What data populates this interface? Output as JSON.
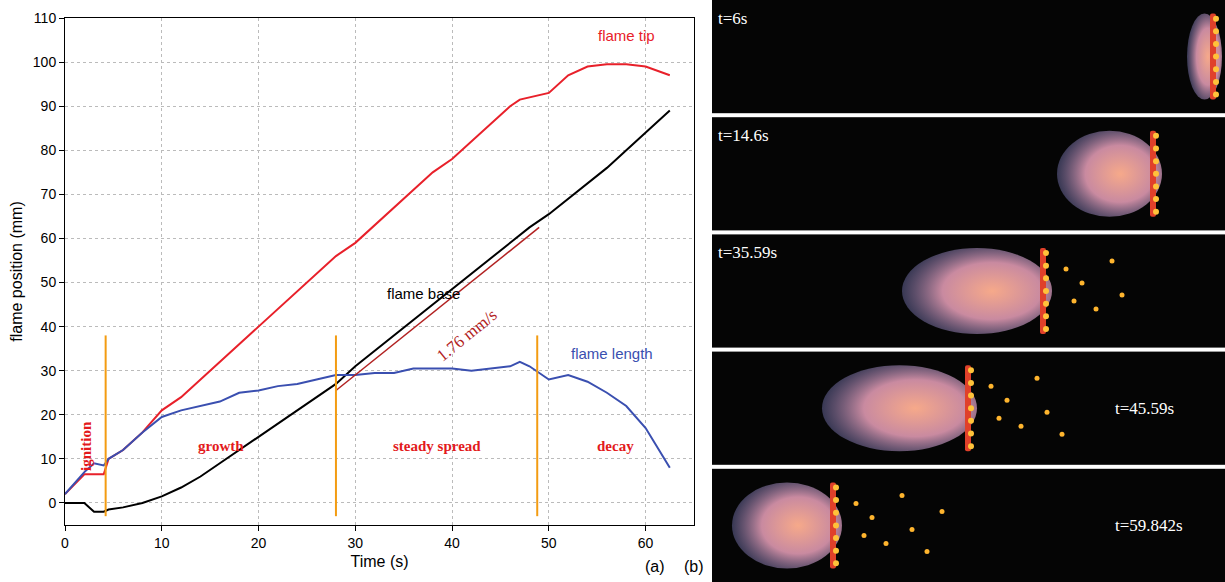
{
  "chart_data": {
    "type": "line",
    "xlabel": "Time (s)",
    "ylabel": "flame position (mm)",
    "xlim": [
      0,
      65
    ],
    "xticks": [
      0,
      10,
      20,
      30,
      40,
      50,
      60
    ],
    "ylim": [
      -5,
      110
    ],
    "yticks": [
      0,
      10,
      20,
      30,
      40,
      50,
      60,
      70,
      80,
      90,
      100,
      110
    ],
    "grid": true,
    "x": [
      0,
      2,
      3,
      4,
      4.5,
      6,
      8,
      10,
      12,
      14,
      16,
      18,
      20,
      22,
      24,
      26,
      28,
      30,
      32,
      34,
      36,
      38,
      40,
      42,
      44,
      46,
      47,
      48,
      50,
      52,
      54,
      56,
      58,
      60,
      62.5
    ],
    "series": [
      {
        "name": "flame tip",
        "color": "#e8202a",
        "label_at": [
          58,
          106
        ],
        "values": [
          2,
          6.5,
          6.5,
          6.5,
          10,
          12,
          16,
          21,
          24,
          28,
          32,
          36,
          40,
          44,
          48,
          52,
          56,
          59,
          63,
          67,
          71,
          75,
          78,
          82,
          86,
          90,
          91.5,
          92,
          93,
          97,
          99,
          99.5,
          99.5,
          99,
          97
        ]
      },
      {
        "name": "flame base",
        "color": "#000000",
        "label_at": [
          37,
          47.5
        ],
        "values": [
          0,
          0,
          -2,
          -2,
          -1.5,
          -1,
          0,
          1.5,
          3.5,
          6,
          9,
          12,
          15,
          18,
          21,
          24,
          27,
          31,
          34.5,
          38,
          41.5,
          45,
          48.5,
          52,
          55.5,
          59,
          60.8,
          62.5,
          65.5,
          69,
          72.5,
          76,
          80,
          84,
          89
        ]
      },
      {
        "name": "flame length",
        "color": "#3a4fb0",
        "label_at": [
          56.5,
          34
        ],
        "values": [
          2,
          7,
          9,
          8.5,
          10,
          12,
          16,
          19.5,
          21,
          22,
          23,
          25,
          25.5,
          26.5,
          27,
          28,
          29,
          29,
          29.5,
          29.5,
          30.5,
          30.5,
          30.5,
          30,
          30.5,
          31,
          32,
          31,
          28,
          29,
          27.5,
          25,
          22,
          17,
          8
        ]
      }
    ],
    "fit": {
      "x": [
        28,
        49
      ],
      "values": [
        25.5,
        62.5
      ],
      "color": "#b22222",
      "label": "1.76 mm/s",
      "label_at": [
        41.5,
        38
      ]
    },
    "phases": {
      "boundaries": [
        4.2,
        28,
        48.8
      ],
      "y_span": [
        -3,
        38
      ],
      "color": "#f39c12",
      "labels": [
        "ignition",
        "growth",
        "steady spread",
        "decay"
      ],
      "label_color": "#e31a1c",
      "label_y": 13
    }
  },
  "panel_labels": [
    "(a)",
    "(b)"
  ],
  "images": {
    "frames": [
      "t=6s",
      "t=14.6s",
      "t=35.59s",
      "t=45.59s",
      "t=59.842s"
    ]
  }
}
